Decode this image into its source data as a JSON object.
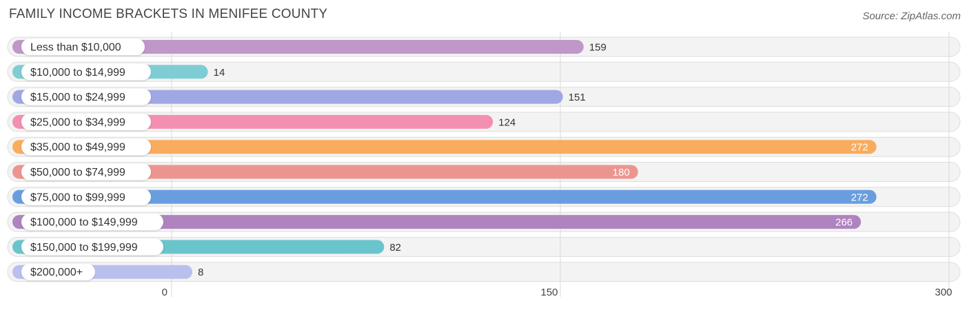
{
  "title": "FAMILY INCOME BRACKETS IN MENIFEE COUNTY",
  "source": "Source: ZipAtlas.com",
  "chart_data": {
    "type": "bar",
    "orientation": "horizontal",
    "title": "FAMILY INCOME BRACKETS IN MENIFEE COUNTY",
    "categories": [
      "Less than $10,000",
      "$10,000 to $14,999",
      "$15,000 to $24,999",
      "$25,000 to $34,999",
      "$35,000 to $49,999",
      "$50,000 to $74,999",
      "$75,000 to $99,999",
      "$100,000 to $149,999",
      "$150,000 to $199,999",
      "$200,000+"
    ],
    "values": [
      159,
      14,
      151,
      124,
      272,
      180,
      272,
      266,
      82,
      8
    ],
    "value_labels": [
      "159",
      "14",
      "151",
      "124",
      "272",
      "180",
      "272",
      "266",
      "82",
      "8"
    ],
    "colors": [
      "#c097c8",
      "#7fcdd4",
      "#9fa8e4",
      "#f38fb0",
      "#f9ac5e",
      "#ec9590",
      "#689ee0",
      "#ae83bf",
      "#6ac4cb",
      "#b9c0ee"
    ],
    "xlim": [
      0,
      300
    ],
    "xticks": [
      0,
      150,
      300
    ],
    "xtick_labels": [
      "0",
      "150",
      "300"
    ],
    "grid": true,
    "xlabel": "",
    "ylabel": ""
  }
}
